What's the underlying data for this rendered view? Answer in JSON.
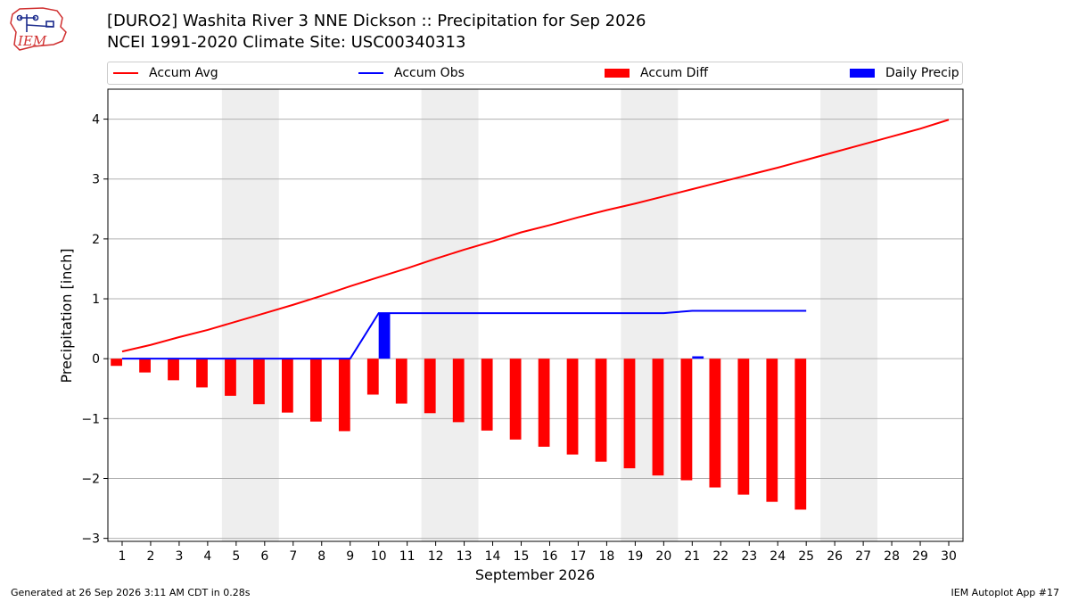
{
  "header": {
    "title_line1": "[DURO2] Washita River 3 NNE Dickson :: Precipitation for Sep 2026",
    "title_line2": "NCEI 1991-2020 Climate Site: USC00340313",
    "logo_text": "IEM"
  },
  "legend": {
    "accum_avg": "Accum Avg",
    "accum_obs": "Accum Obs",
    "accum_diff": "Accum Diff",
    "daily_precip": "Daily Precip"
  },
  "colors": {
    "accum_avg": "#ff0000",
    "accum_obs": "#0000ff",
    "accum_diff": "#ff0000",
    "daily_precip": "#0000ff",
    "weekend_shade": "#eeeeee",
    "grid": "#b0b0b0"
  },
  "footer": {
    "generated": "Generated at 26 Sep 2026 3:11 AM CDT in 0.28s",
    "app": "IEM Autoplot App #17"
  },
  "chart_data": {
    "type": "bar",
    "xlabel": "September 2026",
    "ylabel": "Precipitation [inch]",
    "ylim": [
      -3.05,
      4.5
    ],
    "xlim": [
      0.5,
      30.5
    ],
    "yticks": [
      -3,
      -2,
      -1,
      0,
      1,
      2,
      3,
      4
    ],
    "ytick_labels": [
      "−3",
      "−2",
      "−1",
      "0",
      "1",
      "2",
      "3",
      "4"
    ],
    "x": [
      1,
      2,
      3,
      4,
      5,
      6,
      7,
      8,
      9,
      10,
      11,
      12,
      13,
      14,
      15,
      16,
      17,
      18,
      19,
      20,
      21,
      22,
      23,
      24,
      25,
      26,
      27,
      28,
      29,
      30
    ],
    "weekend_spans": [
      [
        4.5,
        6.5
      ],
      [
        11.5,
        13.5
      ],
      [
        18.5,
        20.5
      ],
      [
        25.5,
        27.5
      ]
    ],
    "grid": true,
    "legend_position": "top",
    "series": [
      {
        "name": "Accum Avg",
        "kind": "line",
        "x": [
          1,
          2,
          3,
          4,
          5,
          6,
          7,
          8,
          9,
          10,
          11,
          12,
          13,
          14,
          15,
          16,
          17,
          18,
          19,
          20,
          21,
          22,
          23,
          24,
          25,
          26,
          27,
          28,
          29,
          30
        ],
        "values": [
          0.12,
          0.23,
          0.36,
          0.48,
          0.62,
          0.76,
          0.9,
          1.05,
          1.21,
          1.36,
          1.51,
          1.67,
          1.82,
          1.96,
          2.11,
          2.23,
          2.36,
          2.48,
          2.59,
          2.71,
          2.83,
          2.95,
          3.07,
          3.19,
          3.32,
          3.45,
          3.58,
          3.71,
          3.84,
          3.99
        ]
      },
      {
        "name": "Accum Obs",
        "kind": "line",
        "x": [
          1,
          2,
          3,
          4,
          5,
          6,
          7,
          8,
          9,
          10,
          11,
          12,
          13,
          14,
          15,
          16,
          17,
          18,
          19,
          20,
          21,
          22,
          23,
          24,
          25
        ],
        "values": [
          0,
          0,
          0,
          0,
          0,
          0,
          0,
          0,
          0,
          0.76,
          0.76,
          0.76,
          0.76,
          0.76,
          0.76,
          0.76,
          0.76,
          0.76,
          0.76,
          0.76,
          0.8,
          0.8,
          0.8,
          0.8,
          0.8
        ]
      },
      {
        "name": "Accum Diff",
        "kind": "bar",
        "x": [
          1,
          2,
          3,
          4,
          5,
          6,
          7,
          8,
          9,
          10,
          11,
          12,
          13,
          14,
          15,
          16,
          17,
          18,
          19,
          20,
          21,
          22,
          23,
          24,
          25
        ],
        "values": [
          -0.12,
          -0.23,
          -0.36,
          -0.48,
          -0.62,
          -0.76,
          -0.9,
          -1.05,
          -1.21,
          -0.6,
          -0.75,
          -0.91,
          -1.06,
          -1.2,
          -1.35,
          -1.47,
          -1.6,
          -1.72,
          -1.83,
          -1.95,
          -2.03,
          -2.15,
          -2.27,
          -2.39,
          -2.52
        ]
      },
      {
        "name": "Daily Precip",
        "kind": "bar",
        "x": [
          10,
          21
        ],
        "values": [
          0.76,
          0.04
        ]
      }
    ]
  }
}
